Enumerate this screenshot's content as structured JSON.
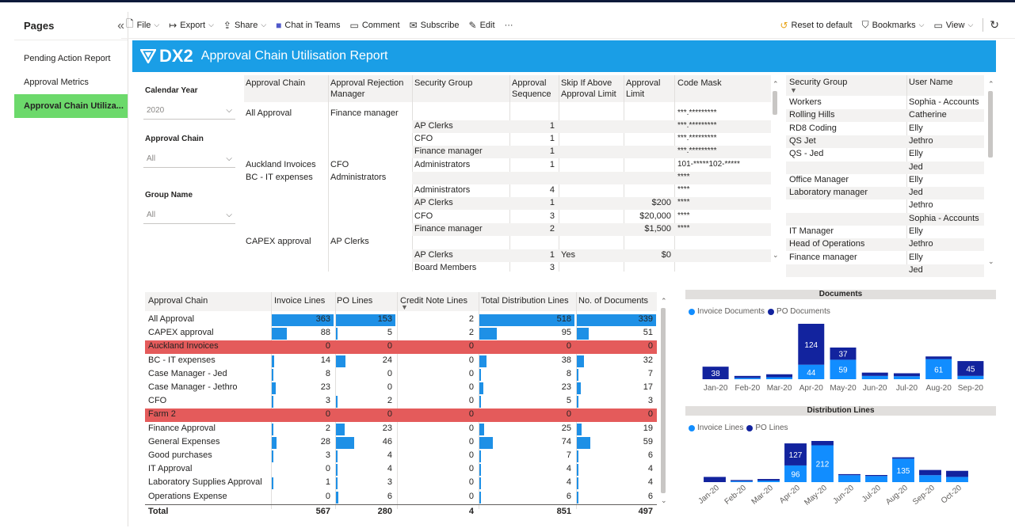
{
  "pages_pane": {
    "title": "Pages",
    "items": [
      {
        "label": "Pending Action Report"
      },
      {
        "label": "Approval Metrics"
      },
      {
        "label": "Approval Chain Utiliza..."
      }
    ]
  },
  "toolbar": {
    "file": "File",
    "export": "Export",
    "share": "Share",
    "chat": "Chat in Teams",
    "comment": "Comment",
    "subscribe": "Subscribe",
    "edit": "Edit",
    "more": "···",
    "reset": "Reset to default",
    "bookmarks": "Bookmarks",
    "view": "View"
  },
  "report": {
    "logo": "DX2",
    "title": "Approval Chain Utilisation Report"
  },
  "slicers": [
    {
      "label": "Calendar Year",
      "value": "2020"
    },
    {
      "label": "Approval Chain",
      "value": "All"
    },
    {
      "label": "Group Name",
      "value": "All"
    }
  ],
  "chain_table": {
    "headers": [
      "Approval Chain",
      "Approval Rejection Manager",
      "Security Group",
      "Approval Sequence",
      "Skip If Above Approval Limit",
      "Approval Limit",
      "Code Mask"
    ],
    "rows": [
      {
        "chain": "All Approval",
        "manager": "Finance manager",
        "group": "",
        "seq": "",
        "skip": "",
        "limit": "",
        "mask": "***.*********"
      },
      {
        "chain": "",
        "manager": "",
        "group": "AP Clerks",
        "seq": "1",
        "skip": "",
        "limit": "",
        "mask": "***.*********"
      },
      {
        "chain": "",
        "manager": "",
        "group": "CFO",
        "seq": "1",
        "skip": "",
        "limit": "",
        "mask": "***.*********"
      },
      {
        "chain": "",
        "manager": "",
        "group": "Finance manager",
        "seq": "1",
        "skip": "",
        "limit": "",
        "mask": "***.*********"
      },
      {
        "chain": "Auckland Invoices",
        "manager": "CFO",
        "group": "Administrators",
        "seq": "1",
        "skip": "",
        "limit": "",
        "mask": "101-*****102-*****"
      },
      {
        "chain": "BC - IT expenses",
        "manager": "Administrators",
        "group": "",
        "seq": "",
        "skip": "",
        "limit": "",
        "mask": "****"
      },
      {
        "chain": "",
        "manager": "",
        "group": "Administrators",
        "seq": "4",
        "skip": "",
        "limit": "",
        "mask": "****"
      },
      {
        "chain": "",
        "manager": "",
        "group": "AP Clerks",
        "seq": "1",
        "skip": "",
        "limit": "$200",
        "mask": "****"
      },
      {
        "chain": "",
        "manager": "",
        "group": "CFO",
        "seq": "3",
        "skip": "",
        "limit": "$20,000",
        "mask": "****"
      },
      {
        "chain": "",
        "manager": "",
        "group": "Finance manager",
        "seq": "2",
        "skip": "",
        "limit": "$1,500",
        "mask": "****"
      },
      {
        "chain": "CAPEX approval",
        "manager": "AP Clerks",
        "group": "",
        "seq": "",
        "skip": "",
        "limit": "",
        "mask": ""
      },
      {
        "chain": "",
        "manager": "",
        "group": "AP Clerks",
        "seq": "1",
        "skip": "Yes",
        "limit": "$0",
        "mask": ""
      },
      {
        "chain": "",
        "manager": "",
        "group": "Board Members",
        "seq": "3",
        "skip": "",
        "limit": "",
        "mask": ""
      }
    ]
  },
  "users_table": {
    "headers": [
      "Security Group",
      "User Name"
    ],
    "rows": [
      {
        "group": "Workers",
        "user": "Sophia - Accounts"
      },
      {
        "group": "Rolling Hills",
        "user": "Catherine"
      },
      {
        "group": "RD8 Coding",
        "user": "Elly"
      },
      {
        "group": "QS Jet",
        "user": "Jethro"
      },
      {
        "group": "QS - Jed",
        "user": "Elly"
      },
      {
        "group": "",
        "user": "Jed"
      },
      {
        "group": "Office Manager",
        "user": "Elly"
      },
      {
        "group": "Laboratory manager",
        "user": "Jed"
      },
      {
        "group": "",
        "user": "Jethro"
      },
      {
        "group": "",
        "user": "Sophia - Accounts"
      },
      {
        "group": "IT Manager",
        "user": "Elly"
      },
      {
        "group": "Head of Operations",
        "user": "Jethro"
      },
      {
        "group": "Finance manager",
        "user": "Elly"
      },
      {
        "group": "",
        "user": "Jed"
      }
    ]
  },
  "metrics_table": {
    "headers": [
      "Approval Chain",
      "Invoice Lines",
      "PO Lines",
      "Credit Note Lines",
      "Total Distribution Lines",
      "No. of Documents"
    ],
    "rows": [
      {
        "name": "All Approval",
        "inv": "363",
        "po": "153",
        "cn": "2",
        "tdl": "518",
        "docs": "339",
        "highlight": false
      },
      {
        "name": "CAPEX approval",
        "inv": "88",
        "po": "5",
        "cn": "2",
        "tdl": "95",
        "docs": "51",
        "highlight": false
      },
      {
        "name": "Auckland Invoices",
        "inv": "0",
        "po": "0",
        "cn": "0",
        "tdl": "0",
        "docs": "0",
        "highlight": true
      },
      {
        "name": "BC - IT expenses",
        "inv": "14",
        "po": "24",
        "cn": "0",
        "tdl": "38",
        "docs": "32",
        "highlight": false
      },
      {
        "name": "Case Manager - Jed",
        "inv": "8",
        "po": "0",
        "cn": "0",
        "tdl": "8",
        "docs": "7",
        "highlight": false
      },
      {
        "name": "Case Manager - Jethro",
        "inv": "23",
        "po": "0",
        "cn": "0",
        "tdl": "23",
        "docs": "17",
        "highlight": false
      },
      {
        "name": "CFO",
        "inv": "3",
        "po": "2",
        "cn": "0",
        "tdl": "5",
        "docs": "3",
        "highlight": false
      },
      {
        "name": "Farm 2",
        "inv": "0",
        "po": "0",
        "cn": "0",
        "tdl": "0",
        "docs": "0",
        "highlight": true
      },
      {
        "name": "Finance Approval",
        "inv": "2",
        "po": "23",
        "cn": "0",
        "tdl": "25",
        "docs": "19",
        "highlight": false
      },
      {
        "name": "General Expenses",
        "inv": "28",
        "po": "46",
        "cn": "0",
        "tdl": "74",
        "docs": "59",
        "highlight": false
      },
      {
        "name": "Good purchases",
        "inv": "3",
        "po": "4",
        "cn": "0",
        "tdl": "7",
        "docs": "6",
        "highlight": false
      },
      {
        "name": "IT Approval",
        "inv": "0",
        "po": "4",
        "cn": "0",
        "tdl": "4",
        "docs": "4",
        "highlight": false
      },
      {
        "name": "Laboratory Supplies Approval",
        "inv": "1",
        "po": "3",
        "cn": "0",
        "tdl": "4",
        "docs": "4",
        "highlight": false
      },
      {
        "name": "Operations Expense",
        "inv": "0",
        "po": "6",
        "cn": "0",
        "tdl": "6",
        "docs": "6",
        "highlight": false
      }
    ],
    "total": {
      "name": "Total",
      "inv": "567",
      "po": "280",
      "cn": "4",
      "tdl": "851",
      "docs": "497"
    },
    "highlight_color": "#e45b5b",
    "bar_color": "#1e90e6"
  },
  "chart_data": [
    {
      "type": "bar",
      "title": "Documents",
      "categories": [
        "Jan-20",
        "Feb-20",
        "Mar-20",
        "Apr-20",
        "May-20",
        "Jun-20",
        "Jul-20",
        "Aug-20",
        "Sep-20"
      ],
      "series": [
        {
          "name": "Invoice Documents",
          "color": "#118dff",
          "values": [
            0,
            4,
            6,
            44,
            59,
            10,
            9,
            61,
            10
          ]
        },
        {
          "name": "PO Documents",
          "color": "#12239e",
          "values": [
            38,
            6,
            9,
            124,
            37,
            10,
            9,
            8,
            45
          ]
        }
      ],
      "labels": [
        {
          "index": 0,
          "series": 1,
          "text": "38"
        },
        {
          "index": 3,
          "series": 0,
          "text": "44"
        },
        {
          "index": 3,
          "series": 1,
          "text": "124"
        },
        {
          "index": 4,
          "series": 0,
          "text": "59"
        },
        {
          "index": 4,
          "series": 1,
          "text": "37"
        },
        {
          "index": 7,
          "series": 0,
          "text": "61"
        },
        {
          "index": 8,
          "series": 1,
          "text": "45"
        }
      ],
      "stacked": true
    },
    {
      "type": "bar",
      "title": "Distribution Lines",
      "categories": [
        "Jan-20",
        "Feb-20",
        "Mar-20",
        "Apr-20",
        "May-20",
        "Jun-20",
        "Jul-20",
        "Aug-20",
        "Sep-20",
        "Oct-20"
      ],
      "series": [
        {
          "name": "Invoice Lines",
          "color": "#118dff",
          "values": [
            0,
            6,
            9,
            96,
            212,
            40,
            35,
            135,
            40,
            30
          ]
        },
        {
          "name": "PO Lines",
          "color": "#12239e",
          "values": [
            30,
            6,
            9,
            127,
            25,
            6,
            6,
            8,
            30,
            35
          ]
        }
      ],
      "labels": [
        {
          "index": 3,
          "series": 0,
          "text": "96"
        },
        {
          "index": 3,
          "series": 1,
          "text": "127"
        },
        {
          "index": 4,
          "series": 0,
          "text": "212"
        },
        {
          "index": 7,
          "series": 0,
          "text": "135"
        }
      ],
      "stacked": true
    }
  ]
}
